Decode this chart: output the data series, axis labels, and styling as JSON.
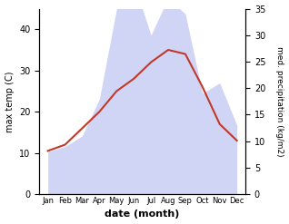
{
  "months": [
    "Jan",
    "Feb",
    "Mar",
    "Apr",
    "May",
    "Jun",
    "Jul",
    "Aug",
    "Sep",
    "Oct",
    "Nov",
    "Dec"
  ],
  "temperature": [
    10.5,
    12,
    16,
    20,
    25,
    28,
    32,
    35,
    34,
    26,
    17,
    13
  ],
  "precipitation": [
    8,
    9,
    11,
    18,
    35,
    40,
    30,
    37,
    34,
    19,
    21,
    13
  ],
  "temp_color": "#c0392b",
  "precip_fill_color": "#c8cef5",
  "precip_fill_alpha": 0.85,
  "temp_ylim": [
    0,
    45
  ],
  "precip_ylim": [
    0,
    35
  ],
  "xlabel": "date (month)",
  "ylabel_left": "max temp (C)",
  "ylabel_right": "med. precipitation (kg/m2)",
  "temp_yticks": [
    0,
    10,
    20,
    30,
    40
  ],
  "precip_yticks": [
    0,
    5,
    10,
    15,
    20,
    25,
    30,
    35
  ],
  "bg_color": "#ffffff"
}
